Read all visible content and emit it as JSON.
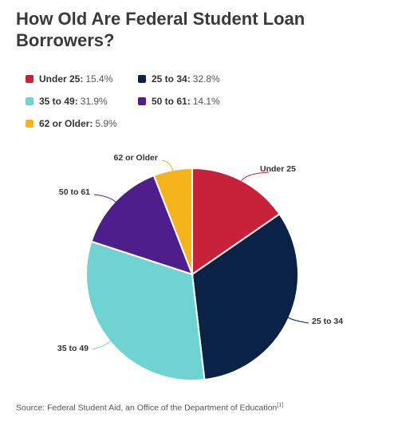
{
  "chart_data": {
    "type": "pie",
    "title": "How Old Are Federal Student Loan Borrowers?",
    "legend_placement": "top",
    "slices": [
      {
        "label": "Under 25",
        "value": 15.4,
        "display": "15.4%",
        "color": "#c8213a"
      },
      {
        "label": "25 to 34",
        "value": 32.8,
        "display": "32.8%",
        "color": "#0a2245"
      },
      {
        "label": "35 to 49",
        "value": 31.9,
        "display": "31.9%",
        "color": "#6fd3d1"
      },
      {
        "label": "50 to 61",
        "value": 14.1,
        "display": "14.1%",
        "color": "#4e1e8c"
      },
      {
        "label": "62 or Older",
        "value": 5.9,
        "display": "5.9%",
        "color": "#f5b41a"
      }
    ]
  },
  "source": {
    "text": "Source: Federal Student Aid, an Office of the Department of Education",
    "footnote": "[1]"
  }
}
